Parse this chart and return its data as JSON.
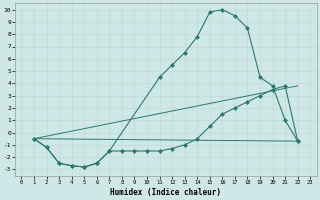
{
  "xlabel": "Humidex (Indice chaleur)",
  "background_color": "#cee8e8",
  "grid_color": "#b0d0d0",
  "line_color": "#2a7a6a",
  "xlim": [
    -0.5,
    23.5
  ],
  "ylim": [
    -3.5,
    10.5
  ],
  "xticks": [
    0,
    1,
    2,
    3,
    4,
    5,
    6,
    7,
    8,
    9,
    10,
    11,
    12,
    13,
    14,
    15,
    16,
    17,
    18,
    19,
    20,
    21,
    22,
    23
  ],
  "yticks": [
    -3,
    -2,
    -1,
    0,
    1,
    2,
    3,
    4,
    5,
    6,
    7,
    8,
    9,
    10
  ],
  "curve1_x": [
    1,
    2,
    3,
    4,
    5,
    6,
    7,
    11,
    12,
    13,
    14,
    15,
    16,
    17,
    18,
    19,
    20,
    21,
    22
  ],
  "curve1_y": [
    -0.5,
    -1.2,
    -2.5,
    -2.7,
    -2.8,
    -2.5,
    -1.5,
    4.5,
    5.5,
    6.5,
    7.8,
    9.8,
    10.0,
    9.5,
    8.5,
    4.5,
    3.8,
    1.0,
    -0.7
  ],
  "curve2_x": [
    1,
    2,
    3,
    4,
    5,
    6,
    7,
    8,
    9,
    10,
    11,
    12,
    13,
    14,
    15,
    16,
    17,
    18,
    19,
    20,
    21,
    22
  ],
  "curve2_y": [
    -0.5,
    -1.2,
    -2.5,
    -2.7,
    -2.8,
    -2.5,
    -1.5,
    -1.5,
    -1.5,
    -1.5,
    -1.5,
    -1.3,
    -1.0,
    -0.5,
    0.5,
    1.5,
    2.0,
    2.5,
    3.0,
    3.5,
    3.8,
    -0.7
  ],
  "line1_x": [
    1,
    22
  ],
  "line1_y": [
    -0.5,
    3.8
  ],
  "line2_x": [
    1,
    22
  ],
  "line2_y": [
    -0.5,
    -0.7
  ],
  "markersize": 2.5
}
